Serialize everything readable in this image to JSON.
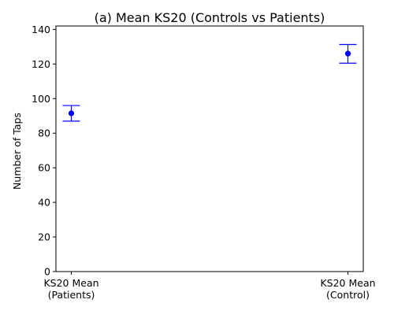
{
  "chart_data": {
    "type": "scatter",
    "title": "(a) Mean KS20 (Controls vs Patients)",
    "xlabel": "",
    "ylabel": "Number of Taps",
    "categories": [
      [
        "KS20 Mean",
        "(Patients)"
      ],
      [
        "KS20 Mean",
        "(Control)"
      ]
    ],
    "points": [
      {
        "mean": 91.5,
        "lower": 87.0,
        "upper": 96.0
      },
      {
        "mean": 126.0,
        "lower": 120.5,
        "upper": 131.3
      }
    ],
    "ylim": [
      0,
      142
    ],
    "yticks": [
      0,
      20,
      40,
      60,
      80,
      100,
      120,
      140
    ],
    "grid": false,
    "color": "#0000ff"
  }
}
